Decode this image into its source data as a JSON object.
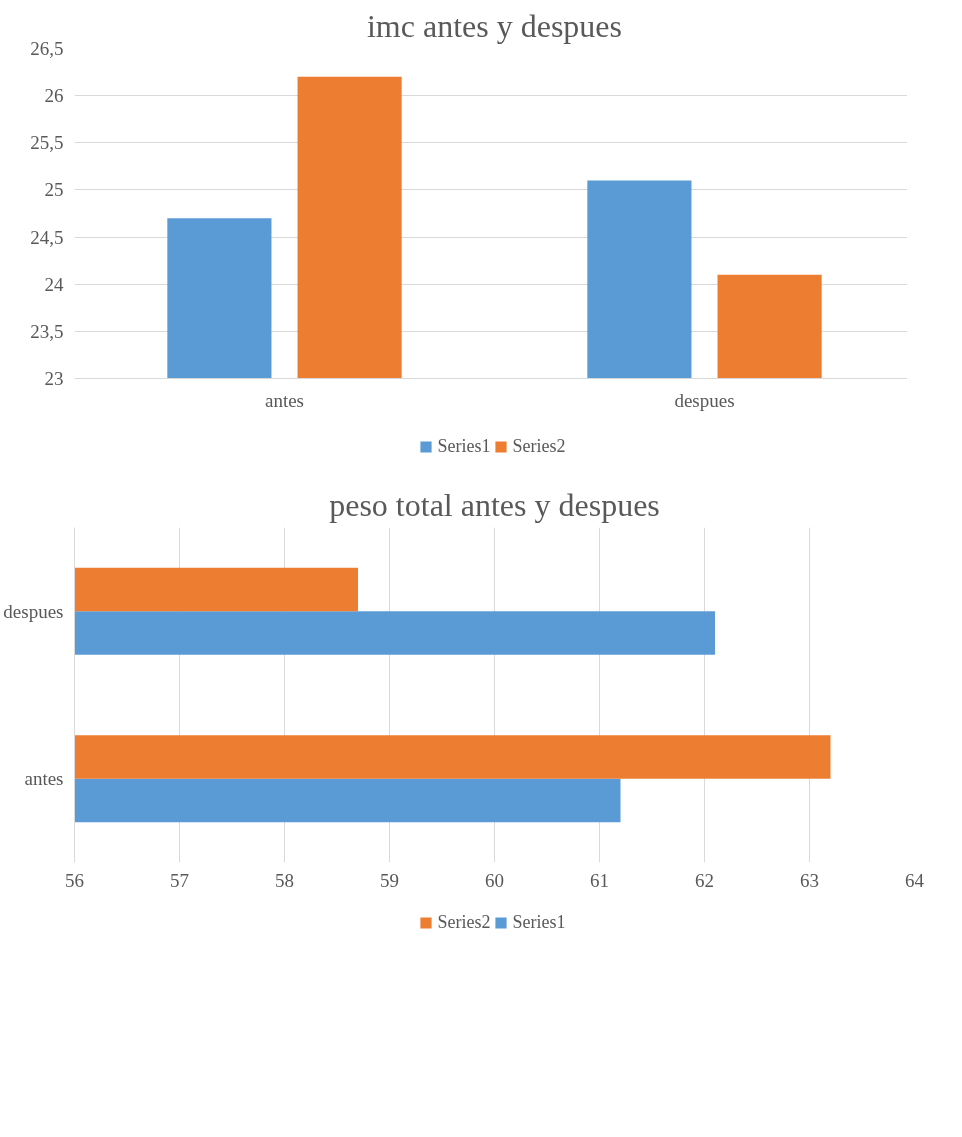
{
  "chart_data": [
    {
      "type": "bar",
      "title": "imc antes y despues",
      "categories": [
        "antes",
        "despues"
      ],
      "series": [
        {
          "name": "Series1",
          "color": "#5b9bd5",
          "values": [
            24.7,
            25.1
          ]
        },
        {
          "name": "Series2",
          "color": "#ed7d31",
          "values": [
            26.2,
            24.1
          ]
        }
      ],
      "ylim": [
        23,
        26.5
      ],
      "yticks": [
        23,
        {
          "value": 23.5,
          "label": "23,5"
        },
        24,
        {
          "value": 24.5,
          "label": "24,5"
        },
        25,
        {
          "value": 25.5,
          "label": "25,5"
        },
        26,
        {
          "value": 26.5,
          "label": "26,5"
        }
      ],
      "grid": "y",
      "legend": "bottom"
    },
    {
      "type": "bar",
      "orientation": "horizontal",
      "title": "peso total antes y despues",
      "categories": [
        "despues",
        "antes"
      ],
      "series": [
        {
          "name": "Series1",
          "color": "#5b9bd5",
          "values": [
            62.1,
            61.2
          ]
        },
        {
          "name": "Series2",
          "color": "#ed7d31",
          "values": [
            58.7,
            63.2
          ]
        }
      ],
      "xlim": [
        56,
        64
      ],
      "xticks": [
        56,
        57,
        58,
        59,
        60,
        61,
        62,
        63,
        64
      ],
      "grid": "x",
      "legend": "bottom"
    }
  ]
}
